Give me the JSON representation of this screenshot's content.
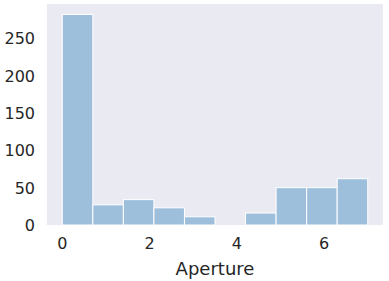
{
  "chart_data": {
    "type": "histogram",
    "x_label": "Aperture",
    "bins": [
      0,
      0.7,
      1.4,
      2.1,
      2.8,
      3.5,
      4.2,
      4.9,
      5.6,
      6.3,
      7
    ],
    "values": [
      282,
      27,
      34,
      23,
      11,
      0,
      16,
      50,
      50,
      62
    ],
    "color": "#9ebfdc",
    "xlim": [
      -0.35,
      7.35
    ],
    "ylim": [
      0,
      296
    ],
    "xticks": [
      0,
      2,
      4,
      6
    ],
    "yticks": [
      0,
      50,
      100,
      150,
      200,
      250
    ],
    "grid": false
  }
}
